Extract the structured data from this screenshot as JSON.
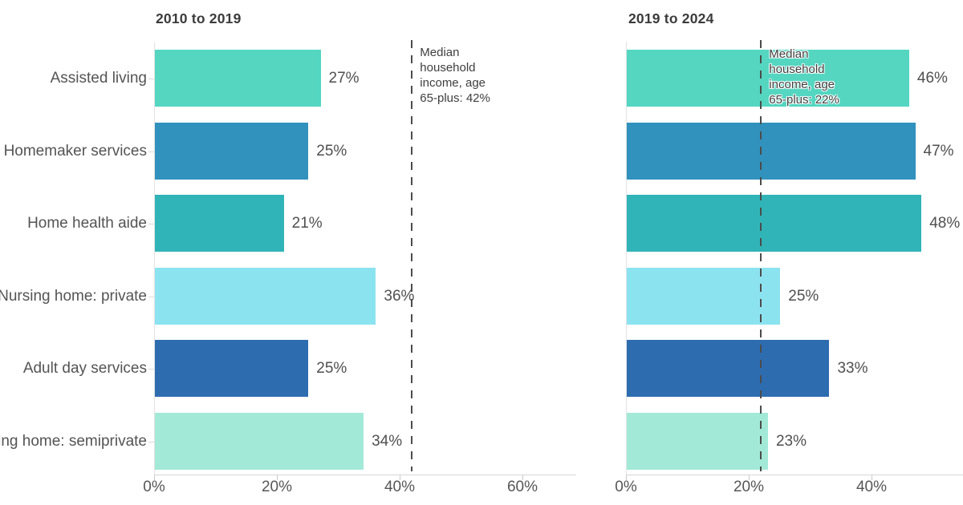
{
  "page": {
    "background": "#ffffff"
  },
  "colors": {
    "assisted_living": "#54d6c1",
    "homemaker_services": "#3192bd",
    "home_health_aide": "#30b4b7",
    "nursing_home_private": "#8ce3f0",
    "adult_day_services": "#2e6cb0",
    "nursing_home_semiprivate": "#a3e9d7",
    "axis_line": "#d6d6d6",
    "reference_line": "#4c4c4c",
    "text": "#545454",
    "title": "#3b3b3b"
  },
  "chart_data": [
    {
      "type": "bar",
      "orientation": "horizontal",
      "title": "2010 to 2019",
      "categories": [
        "Assisted living",
        "Homemaker services",
        "Home health aide",
        "Nursing home: private",
        "Adult day services",
        "Nursing home: semiprivate"
      ],
      "values": [
        27,
        25,
        21,
        36,
        25,
        34
      ],
      "value_labels": [
        "27%",
        "25%",
        "21%",
        "36%",
        "25%",
        "34%"
      ],
      "bar_colors": [
        "#54d6c1",
        "#3192bd",
        "#30b4b7",
        "#8ce3f0",
        "#2e6cb0",
        "#a3e9d7"
      ],
      "xticks": [
        "0%",
        "20%",
        "40%",
        "60%"
      ],
      "xtick_values": [
        0,
        20,
        40,
        60
      ],
      "xlim": [
        0,
        70
      ],
      "grid": false,
      "legend": "none",
      "reference_line": {
        "value": 42,
        "label": "Median household income, age 65-plus: 42%"
      }
    },
    {
      "type": "bar",
      "orientation": "horizontal",
      "title": "2019 to 2024",
      "categories": [
        "Assisted living",
        "Homemaker services",
        "Home health aide",
        "Nursing home: private",
        "Adult day services",
        "Nursing home: semiprivate"
      ],
      "values": [
        46,
        47,
        48,
        25,
        33,
        23
      ],
      "value_labels": [
        "46%",
        "47%",
        "48%",
        "25%",
        "33%",
        "23%"
      ],
      "bar_colors": [
        "#54d6c1",
        "#3192bd",
        "#30b4b7",
        "#8ce3f0",
        "#2e6cb0",
        "#a3e9d7"
      ],
      "xticks": [
        "0%",
        "20%",
        "40%"
      ],
      "xtick_values": [
        0,
        20,
        40
      ],
      "xlim": [
        0,
        55
      ],
      "grid": false,
      "legend": "none",
      "reference_line": {
        "value": 22,
        "label": "Median household income, age 65-plus: 22%"
      }
    }
  ]
}
